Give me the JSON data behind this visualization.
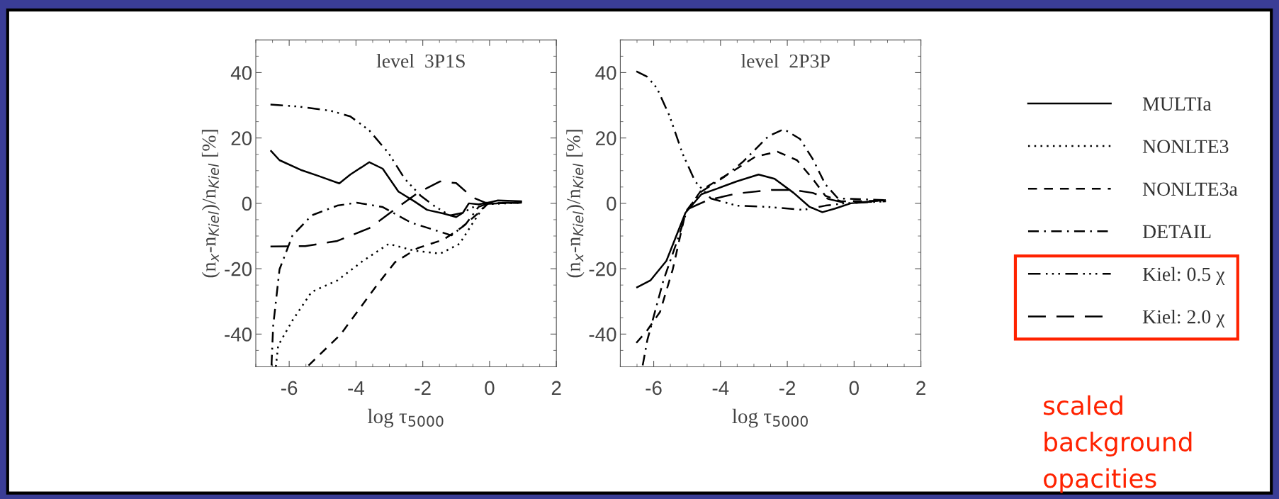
{
  "chart_data": [
    {
      "type": "line",
      "title": "level  3P1S",
      "xlabel": "log τ$_{5000}$",
      "ylabel": "(n$_{x}$-n$_{Kiel}$)/n$_{Kiel}$ [%]",
      "xlim": [
        -7,
        2
      ],
      "ylim": [
        -50,
        50
      ],
      "xticks": [
        -6,
        -4,
        -2,
        0,
        2
      ],
      "yticks": [
        -40,
        -20,
        0,
        20,
        40
      ],
      "grid": false,
      "legend": "right",
      "annotations": [
        "scaled background opacities"
      ],
      "series": [
        {
          "name": "MULTIa",
          "color": "#000000",
          "line_style": "solid",
          "x": [
            -6.56,
            -6.29,
            -5.62,
            -5.13,
            -4.5,
            -4.17,
            -3.6,
            -3.2,
            -2.73,
            -2.25,
            -1.87,
            -1.38,
            -1.0,
            -0.8,
            -0.62,
            -0.33,
            -0.04,
            0.25,
            0.97
          ],
          "values": [
            16.2,
            13.2,
            10.1,
            8.4,
            6.1,
            8.8,
            12.6,
            10.6,
            3.6,
            0.6,
            -2,
            -3.1,
            -4.2,
            -2.9,
            0,
            -0.3,
            0.2,
            0.9,
            0.6
          ]
        },
        {
          "name": "NONLTE3",
          "color": "#000000",
          "line_style": "dotted",
          "x": [
            -6.4,
            -6.33,
            -5.9,
            -5.33,
            -4.56,
            -3.79,
            -3.02,
            -2.25,
            -1.48,
            -0.9,
            -0.52,
            -0.13,
            0.97
          ],
          "values": [
            -50,
            -43.5,
            -35.8,
            -27.1,
            -23.6,
            -17.6,
            -12.4,
            -14.5,
            -15.4,
            -12.4,
            -6.3,
            -0.3,
            0.2
          ]
        },
        {
          "name": "NONLTE3a",
          "color": "#000000",
          "line_style": "dashed",
          "x": [
            -5.42,
            -4.46,
            -3.4,
            -2.83,
            -2.15,
            -1.38,
            -0.81,
            -0.33,
            -0.04,
            0.97
          ],
          "values": [
            -49.6,
            -40.1,
            -25.4,
            -18,
            -13.7,
            -11.1,
            -7.2,
            -2.9,
            0,
            0.2
          ]
        },
        {
          "name": "DETAIL",
          "color": "#000000",
          "line_style": "dashdot",
          "x": [
            -6.53,
            -6.48,
            -6.29,
            -5.9,
            -5.33,
            -4.56,
            -3.98,
            -3.21,
            -2.35,
            -1.67,
            -1.14,
            -0.71,
            -0.33,
            -0.04,
            0.97
          ],
          "values": [
            -49.6,
            -37.5,
            -20.2,
            -9.8,
            -3.7,
            -0.7,
            0.2,
            -1.1,
            -5.9,
            -8.1,
            -9.8,
            -6.3,
            -1.1,
            0,
            0.3
          ]
        },
        {
          "name": "Kiel: 0.5 χ",
          "color": "#000000",
          "line_style": "dashdotdot",
          "x": [
            -6.56,
            -5.71,
            -4.75,
            -4.17,
            -3.6,
            -3.02,
            -2.54,
            -2.06,
            -1.67,
            -1.19,
            -0.81,
            -0.33,
            0.97
          ],
          "values": [
            30.2,
            29.6,
            28.3,
            26.6,
            22.3,
            15.3,
            7.5,
            2.3,
            -0.7,
            -3.7,
            -2.9,
            -0.3,
            0.3
          ]
        },
        {
          "name": "Kiel: 2.0 χ",
          "color": "#000000",
          "line_style": "longdash",
          "x": [
            -6.56,
            -5.52,
            -4.56,
            -3.6,
            -2.83,
            -2.15,
            -1.48,
            -1.0,
            -0.52,
            -0.13,
            0.97
          ],
          "values": [
            -13.2,
            -13.1,
            -11.5,
            -7.6,
            -1.8,
            3.2,
            6.7,
            6.2,
            1.9,
            0.2,
            0.2
          ]
        }
      ]
    },
    {
      "type": "line",
      "title": "level  2P3P",
      "xlabel": "log τ$_{5000}$",
      "ylabel": "(n$_{x}$-n$_{Kiel}$)/n$_{Kiel}$ [%]",
      "xlim": [
        -7,
        2
      ],
      "ylim": [
        -50,
        50
      ],
      "xticks": [
        -6,
        -4,
        -2,
        0,
        2
      ],
      "yticks": [
        -40,
        -20,
        0,
        20,
        40
      ],
      "grid": false,
      "series": [
        {
          "name": "MULTIa",
          "color": "#000000",
          "line_style": "solid",
          "x": [
            -6.52,
            -6.1,
            -5.62,
            -5.05,
            -4.57,
            -4.1,
            -3.52,
            -2.86,
            -2.38,
            -1.81,
            -1.33,
            -0.95,
            -0.57,
            -0.1,
            0.95
          ],
          "values": [
            -25.8,
            -23.6,
            -17.6,
            -2.9,
            2.8,
            4.5,
            6.7,
            8.8,
            7.5,
            3.2,
            -1.1,
            -2.7,
            -1.6,
            0,
            1
          ]
        },
        {
          "name": "NONLTE3a",
          "color": "#000000",
          "line_style": "dashed",
          "x": [
            -6.52,
            -6.19,
            -5.81,
            -5.43,
            -5.05,
            -4.57,
            -3.71,
            -2.95,
            -2.29,
            -1.71,
            -1.24,
            -0.86,
            -0.38,
            0.95
          ],
          "values": [
            -42.7,
            -38.8,
            -33.2,
            -20.2,
            -2.9,
            4.1,
            9.3,
            14.3,
            15.8,
            13.2,
            7.5,
            2.3,
            0.6,
            0.8
          ]
        },
        {
          "name": "DETAIL",
          "color": "#000000",
          "line_style": "dashdot",
          "x": [
            -6.33,
            -6.19,
            -5.71,
            -5.24,
            -5.0,
            -4.57,
            -3.9,
            -3.33,
            -2.57,
            -2.1,
            -1.62,
            -1.24,
            -0.86,
            -0.48,
            0.95
          ],
          "values": [
            -49.6,
            -41.8,
            -23.6,
            -9.8,
            -2,
            3.6,
            8,
            12.7,
            20.5,
            22.7,
            19.7,
            13.6,
            5.8,
            1.5,
            1
          ]
        },
        {
          "name": "Kiel: 0.5 χ",
          "color": "#000000",
          "line_style": "dashdotdot",
          "x": [
            -6.52,
            -6.19,
            -5.9,
            -5.52,
            -5.14,
            -4.76,
            -4.29,
            -3.52,
            -2.57,
            -1.52,
            -0.86,
            -0.29,
            0.95
          ],
          "values": [
            40.4,
            38.7,
            35.2,
            26.6,
            15.3,
            6.7,
            1.5,
            -0.7,
            -1.1,
            -2,
            -0.7,
            0,
            0.6
          ]
        },
        {
          "name": "Kiel: 2.0 χ",
          "color": "#000000",
          "line_style": "longdash",
          "x": [
            -4.95,
            -4.38,
            -3.52,
            -2.48,
            -1.81,
            -1.24,
            -0.76,
            -0.29,
            0.95
          ],
          "values": [
            -1.6,
            1,
            3,
            4.1,
            4.1,
            3.2,
            1.3,
            0.2,
            0.6
          ]
        }
      ]
    }
  ]
}
